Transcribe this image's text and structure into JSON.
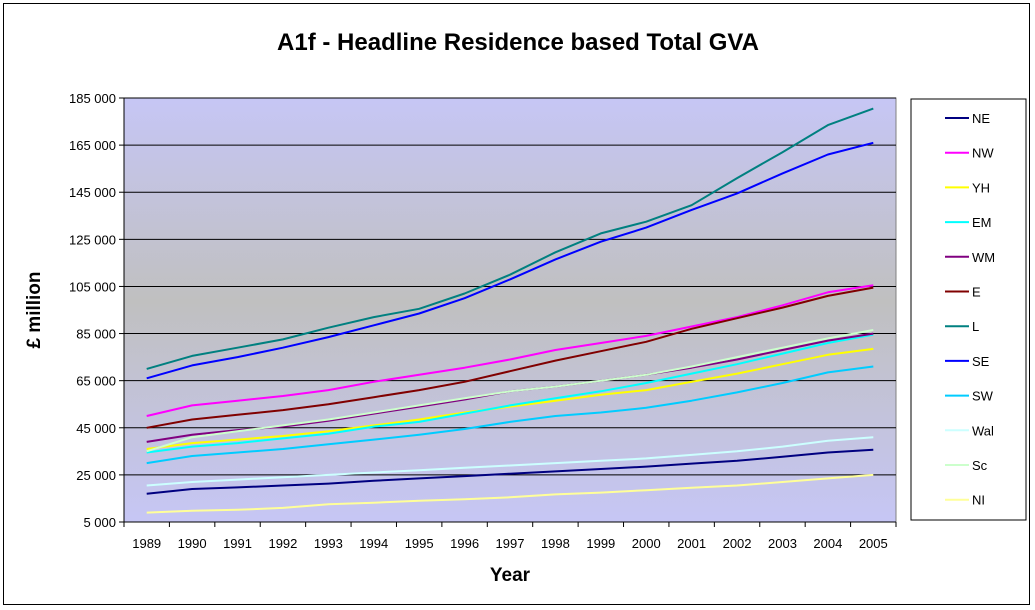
{
  "chart_data": {
    "type": "line",
    "title": "A1f - Headline Residence based Total GVA",
    "xlabel": "Year",
    "ylabel": "£ million",
    "ylim": [
      5000,
      185000
    ],
    "yticks": [
      "5 000",
      "25 000",
      "45 000",
      "65 000",
      "85 000",
      "105 000",
      "125 000",
      "145 000",
      "165 000",
      "185 000"
    ],
    "ytick_values": [
      5000,
      25000,
      45000,
      65000,
      85000,
      105000,
      125000,
      145000,
      165000,
      185000
    ],
    "x": [
      "1989",
      "1990",
      "1991",
      "1992",
      "1993",
      "1994",
      "1995",
      "1996",
      "1997",
      "1998",
      "1999",
      "2000",
      "2001",
      "2002",
      "2003",
      "2004",
      "2005"
    ],
    "grid": true,
    "legend_position": "right",
    "series": [
      {
        "name": "NE",
        "color": "#000080",
        "values": [
          17000,
          19000,
          19700,
          20500,
          21300,
          22500,
          23500,
          24500,
          25500,
          26500,
          27500,
          28500,
          29800,
          31000,
          32700,
          34500,
          35700
        ]
      },
      {
        "name": "NW",
        "color": "#FF00FF",
        "values": [
          50000,
          54500,
          56500,
          58500,
          61000,
          64500,
          67500,
          70500,
          74000,
          78000,
          81000,
          84000,
          88000,
          92000,
          97000,
          102500,
          105500
        ]
      },
      {
        "name": "YH",
        "color": "#FFFF00",
        "values": [
          36000,
          38500,
          40000,
          41500,
          43500,
          46000,
          48500,
          51500,
          54000,
          56500,
          59000,
          61000,
          64500,
          68000,
          72000,
          76000,
          78500
        ]
      },
      {
        "name": "EM",
        "color": "#00FFFF",
        "values": [
          34500,
          37000,
          38500,
          40500,
          42500,
          45500,
          47500,
          51000,
          54500,
          57500,
          60500,
          64000,
          68000,
          72000,
          76500,
          81000,
          84500
        ]
      },
      {
        "name": "WM",
        "color": "#800080",
        "values": [
          39000,
          42000,
          44000,
          45500,
          48000,
          51000,
          54000,
          57000,
          60500,
          62500,
          65000,
          67500,
          70500,
          74000,
          78000,
          82000,
          85000
        ]
      },
      {
        "name": "E",
        "color": "#800000",
        "values": [
          45000,
          48500,
          50500,
          52500,
          55000,
          58000,
          61000,
          64500,
          69000,
          73500,
          77500,
          81500,
          87000,
          91500,
          96000,
          101000,
          104500
        ]
      },
      {
        "name": "L",
        "color": "#008080",
        "values": [
          70000,
          75500,
          79000,
          82500,
          87500,
          92000,
          95500,
          102000,
          110000,
          119500,
          127500,
          132500,
          139500,
          151000,
          162000,
          173500,
          180500
        ]
      },
      {
        "name": "SE",
        "color": "#0000FF",
        "values": [
          66000,
          71500,
          75000,
          79000,
          83500,
          88500,
          93500,
          100000,
          108000,
          116500,
          124000,
          130000,
          137500,
          144500,
          153000,
          161000,
          166000
        ]
      },
      {
        "name": "SW",
        "color": "#00CCFF",
        "values": [
          30000,
          33000,
          34500,
          36000,
          38000,
          40000,
          42000,
          44500,
          47500,
          50000,
          51500,
          53500,
          56500,
          60000,
          64000,
          68500,
          71000
        ]
      },
      {
        "name": "Wal",
        "color": "#CCFFFF",
        "values": [
          20500,
          22000,
          23000,
          24000,
          25000,
          26000,
          27000,
          28000,
          29000,
          30000,
          31000,
          32000,
          33500,
          35000,
          37000,
          39500,
          41000
        ]
      },
      {
        "name": "Sc",
        "color": "#CCFFCC",
        "values": [
          35000,
          41000,
          43500,
          46000,
          48500,
          51500,
          54500,
          57500,
          60500,
          62500,
          65000,
          67500,
          71000,
          75000,
          79000,
          83000,
          86500
        ]
      },
      {
        "name": "NI",
        "color": "#FFFF99",
        "values": [
          9000,
          9800,
          10200,
          11000,
          12500,
          13200,
          14000,
          14700,
          15500,
          16700,
          17500,
          18500,
          19500,
          20500,
          22000,
          23500,
          25000
        ]
      }
    ]
  }
}
